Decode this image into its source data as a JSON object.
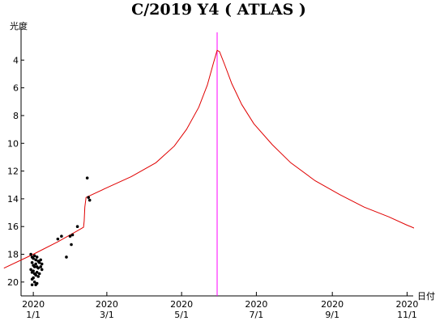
{
  "chart_data": {
    "type": "line",
    "title": "C/2019 Y4 ( ATLAS )",
    "ylabel": "光度",
    "xlabel": "日付",
    "x_unit": "day of 2020 (Jan 1 = 0)",
    "xlim": [
      -10,
      310
    ],
    "ylim": [
      21,
      2
    ],
    "y_inverted": true,
    "y_ticks": [
      4,
      6,
      8,
      10,
      12,
      14,
      16,
      18,
      20
    ],
    "x_ticks": [
      {
        "x": 0,
        "year": "2020",
        "label": "1/1"
      },
      {
        "x": 60,
        "year": "2020",
        "label": "3/1"
      },
      {
        "x": 121,
        "year": "2020",
        "label": "5/1"
      },
      {
        "x": 182,
        "year": "2020",
        "label": "7/1"
      },
      {
        "x": 244,
        "year": "2020",
        "label": "9/1"
      },
      {
        "x": 305,
        "year": "2020",
        "label": "11/1"
      }
    ],
    "perihelion_marker": {
      "x": 150,
      "color": "#ff00ff"
    },
    "predicted_curve": {
      "color": "#e00000",
      "points": [
        [
          -24,
          19.0
        ],
        [
          0,
          18.0
        ],
        [
          20,
          17.1
        ],
        [
          36,
          16.3
        ],
        [
          41,
          16.05
        ],
        [
          41.5,
          15.6
        ],
        [
          42,
          14.6
        ],
        [
          43,
          13.9
        ],
        [
          60,
          13.2
        ],
        [
          80,
          12.4
        ],
        [
          100,
          11.4
        ],
        [
          115,
          10.2
        ],
        [
          125,
          9.0
        ],
        [
          135,
          7.4
        ],
        [
          142,
          5.8
        ],
        [
          147,
          4.2
        ],
        [
          150,
          3.3
        ],
        [
          152,
          3.4
        ],
        [
          156,
          4.3
        ],
        [
          162,
          5.7
        ],
        [
          170,
          7.2
        ],
        [
          180,
          8.6
        ],
        [
          195,
          10.1
        ],
        [
          210,
          11.4
        ],
        [
          230,
          12.7
        ],
        [
          250,
          13.7
        ],
        [
          270,
          14.6
        ],
        [
          290,
          15.3
        ],
        [
          305,
          15.9
        ],
        [
          316,
          16.3
        ]
      ]
    },
    "observations": {
      "color": "#000000",
      "points": [
        [
          -2,
          18.0
        ],
        [
          -1,
          18.2
        ],
        [
          0,
          18.3
        ],
        [
          1,
          18.1
        ],
        [
          2,
          18.4
        ],
        [
          3,
          18.2
        ],
        [
          4,
          18.5
        ],
        [
          5,
          18.6
        ],
        [
          -1,
          18.6
        ],
        [
          0,
          18.8
        ],
        [
          1,
          18.9
        ],
        [
          2,
          18.7
        ],
        [
          3,
          18.9
        ],
        [
          4,
          19.0
        ],
        [
          6,
          18.9
        ],
        [
          7,
          19.1
        ],
        [
          -2,
          19.1
        ],
        [
          -1,
          19.3
        ],
        [
          0,
          19.2
        ],
        [
          1,
          19.4
        ],
        [
          2,
          19.5
        ],
        [
          3,
          19.3
        ],
        [
          4,
          19.6
        ],
        [
          5,
          19.4
        ],
        [
          -1,
          19.8
        ],
        [
          0,
          19.7
        ],
        [
          1,
          20.0
        ],
        [
          2,
          20.2
        ],
        [
          3,
          20.1
        ],
        [
          -1,
          20.2
        ],
        [
          6,
          18.4
        ],
        [
          7,
          18.7
        ],
        [
          20,
          16.9
        ],
        [
          23,
          16.7
        ],
        [
          27,
          18.2
        ],
        [
          30,
          16.7
        ],
        [
          31,
          17.3
        ],
        [
          32,
          16.6
        ],
        [
          36,
          16.0
        ],
        [
          44,
          12.5
        ],
        [
          45,
          13.9
        ],
        [
          46,
          14.1
        ]
      ]
    }
  }
}
